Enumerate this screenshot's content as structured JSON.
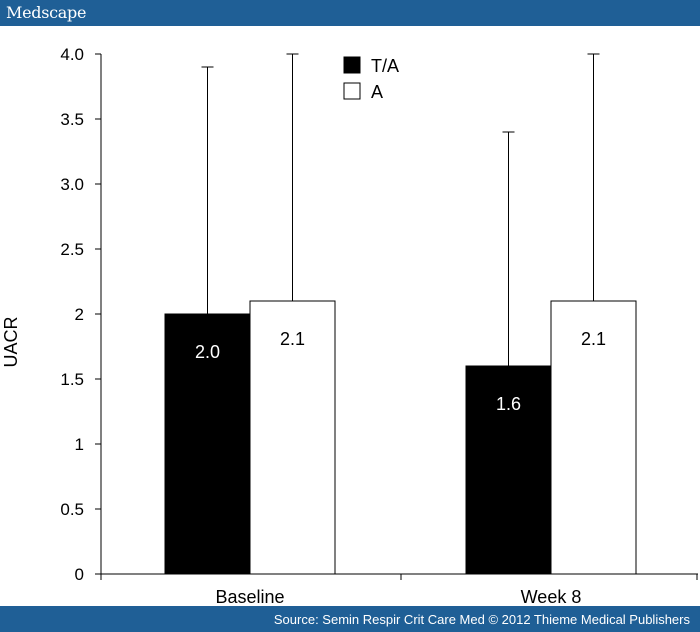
{
  "header": {
    "brand": "Medscape"
  },
  "footer": {
    "source": "Source: Semin Respir Crit Care Med © 2012 Thieme Medical Publishers"
  },
  "colors": {
    "header_bg": "#1f5f96",
    "series_ta": "#000000",
    "series_a": "#ffffff"
  },
  "chart_data": {
    "type": "bar",
    "categories": [
      "Baseline",
      "Week 8"
    ],
    "series": [
      {
        "name": "T/A",
        "values": [
          2.0,
          1.6
        ],
        "labels": [
          "2.0",
          "1.6"
        ],
        "error_upper": [
          3.9,
          3.4
        ],
        "fill": "#000000",
        "label_color": "#ffffff"
      },
      {
        "name": "A",
        "values": [
          2.1,
          2.1
        ],
        "labels": [
          "2.1",
          "2.1"
        ],
        "error_upper": [
          4.0,
          4.0
        ],
        "fill": "#ffffff",
        "label_color": "#000000"
      }
    ],
    "ylabel": "UACR",
    "xlabel": "",
    "ylim": [
      0,
      4.0
    ],
    "yticks": [
      {
        "value": 0,
        "label": "0"
      },
      {
        "value": 0.5,
        "label": "0.5"
      },
      {
        "value": 1,
        "label": "1"
      },
      {
        "value": 1.5,
        "label": "1.5"
      },
      {
        "value": 2,
        "label": "2"
      },
      {
        "value": 2.5,
        "label": "2.5"
      },
      {
        "value": 3.0,
        "label": "3.0"
      },
      {
        "value": 3.5,
        "label": "3.5"
      },
      {
        "value": 4.0,
        "label": "4.0"
      }
    ],
    "grid": false,
    "legend_position": "top-center"
  }
}
